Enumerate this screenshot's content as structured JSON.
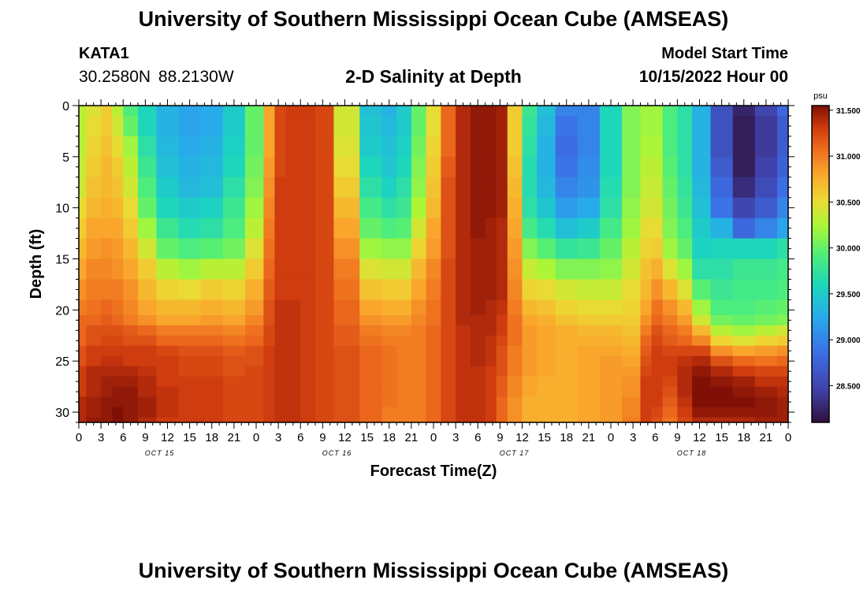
{
  "header": {
    "title": "University of Southern Mississippi Ocean Cube (AMSEAS)",
    "station": "KATA1",
    "coordinates": "30.2580N  88.2130W",
    "subtitle": "2-D Salinity at Depth",
    "model_start_label": "Model Start Time",
    "model_start_value": "10/15/2022 Hour 00"
  },
  "footer": {
    "title": "University of Southern Mississippi Ocean Cube (AMSEAS)"
  },
  "chart_data": {
    "type": "heatmap",
    "title": "2-D Salinity at Depth",
    "xlabel": "Forecast Time(Z)",
    "ylabel": "Depth (ft)",
    "x_hours_range": [
      0,
      96
    ],
    "x_tick_labels": [
      "0",
      "3",
      "6",
      "9",
      "12",
      "15",
      "18",
      "21",
      "0",
      "3",
      "6",
      "9",
      "12",
      "15",
      "18",
      "21",
      "0",
      "3",
      "6",
      "9",
      "12",
      "15",
      "18",
      "21",
      "0",
      "3",
      "6",
      "9",
      "12",
      "15",
      "18",
      "21",
      "0"
    ],
    "day_labels": [
      "OCT 15",
      "OCT 16",
      "OCT 17",
      "OCT 18"
    ],
    "y_range": [
      0,
      31
    ],
    "y_ticks": [
      0,
      5,
      10,
      15,
      20,
      25,
      30
    ],
    "colorbar": {
      "unit": "psu",
      "range": [
        28.1,
        31.55
      ],
      "tick_values": [
        31.5,
        31.0,
        30.5,
        30.0,
        29.5,
        29.0,
        28.5
      ],
      "tick_labels": [
        "31.500",
        "31.000",
        "30.500",
        "30.000",
        "29.500",
        "29.000",
        "28.500"
      ]
    },
    "depth_levels_ft": [
      0,
      2,
      4,
      6,
      8,
      10,
      12,
      14,
      16,
      18,
      20,
      21,
      22,
      23,
      24,
      25,
      26,
      27,
      28,
      29,
      30,
      31
    ],
    "time_hours": [
      0,
      2,
      4,
      5,
      7,
      9,
      12,
      15,
      18,
      21,
      24,
      26,
      27,
      29,
      31,
      33,
      36,
      40,
      42,
      44,
      46,
      48,
      50,
      52,
      54,
      56,
      57,
      59,
      61,
      63,
      66,
      69,
      72,
      75,
      77,
      78,
      80,
      82,
      84,
      87,
      90,
      93,
      96
    ],
    "salinity_columns": [
      [
        30.3,
        30.3,
        30.3,
        30.35,
        30.4,
        30.5,
        30.6,
        30.7,
        30.8,
        30.9,
        31.0,
        31.1,
        31.1,
        31.1,
        31.2,
        31.2,
        31.3,
        31.3,
        31.3,
        31.4,
        31.4,
        31.4
      ],
      [
        30.45,
        30.5,
        30.55,
        30.6,
        30.65,
        30.7,
        30.8,
        30.85,
        30.95,
        31.0,
        31.05,
        31.1,
        31.2,
        31.2,
        31.3,
        31.3,
        31.4,
        31.4,
        31.4,
        31.45,
        31.45,
        31.5
      ],
      [
        30.6,
        30.6,
        30.65,
        30.7,
        30.7,
        30.75,
        30.8,
        30.9,
        30.95,
        31.0,
        31.1,
        31.15,
        31.2,
        31.25,
        31.3,
        31.35,
        31.4,
        31.45,
        31.45,
        31.5,
        31.5,
        31.5
      ],
      [
        30.3,
        30.4,
        30.5,
        30.6,
        30.65,
        30.7,
        30.8,
        30.85,
        30.9,
        31.0,
        31.05,
        31.1,
        31.2,
        31.25,
        31.3,
        31.35,
        31.4,
        31.45,
        31.5,
        31.5,
        31.55,
        31.55
      ],
      [
        29.9,
        30.0,
        30.2,
        30.3,
        30.4,
        30.5,
        30.6,
        30.7,
        30.8,
        30.9,
        30.95,
        31.0,
        31.15,
        31.2,
        31.3,
        31.3,
        31.4,
        31.45,
        31.5,
        31.5,
        31.5,
        31.5
      ],
      [
        29.6,
        29.6,
        29.7,
        29.8,
        29.9,
        30.0,
        30.2,
        30.4,
        30.6,
        30.7,
        30.8,
        30.9,
        31.1,
        31.2,
        31.3,
        31.3,
        31.35,
        31.4,
        31.4,
        31.45,
        31.45,
        31.4
      ],
      [
        29.3,
        29.3,
        29.35,
        29.4,
        29.5,
        29.6,
        29.8,
        30.0,
        30.3,
        30.55,
        30.7,
        30.8,
        31.0,
        31.1,
        31.25,
        31.3,
        31.3,
        31.3,
        31.35,
        31.35,
        31.35,
        31.3
      ],
      [
        29.2,
        29.2,
        29.25,
        29.3,
        29.35,
        29.5,
        29.65,
        29.9,
        30.2,
        30.5,
        30.7,
        30.8,
        31.0,
        31.1,
        31.2,
        31.25,
        31.25,
        31.3,
        31.3,
        31.3,
        31.3,
        31.3
      ],
      [
        29.25,
        29.25,
        29.3,
        29.35,
        29.4,
        29.55,
        29.7,
        29.95,
        30.3,
        30.6,
        30.75,
        30.85,
        31.0,
        31.1,
        31.2,
        31.25,
        31.25,
        31.3,
        31.3,
        31.3,
        31.3,
        31.3
      ],
      [
        29.5,
        29.5,
        29.55,
        29.6,
        29.7,
        29.8,
        29.9,
        30.05,
        30.3,
        30.55,
        30.7,
        30.8,
        30.95,
        31.05,
        31.15,
        31.2,
        31.2,
        31.25,
        31.25,
        31.25,
        31.25,
        31.25
      ],
      [
        30.0,
        30.0,
        30.0,
        30.05,
        30.1,
        30.2,
        30.3,
        30.45,
        30.6,
        30.75,
        30.85,
        30.95,
        31.05,
        31.1,
        31.2,
        31.2,
        31.25,
        31.25,
        31.25,
        31.25,
        31.25,
        31.25
      ],
      [
        30.8,
        30.8,
        30.8,
        30.85,
        30.9,
        30.95,
        31.0,
        31.05,
        31.1,
        31.15,
        31.2,
        31.2,
        31.25,
        31.25,
        31.3,
        31.3,
        31.3,
        31.3,
        31.3,
        31.3,
        31.3,
        31.3
      ],
      [
        31.25,
        31.25,
        31.25,
        31.25,
        31.3,
        31.3,
        31.3,
        31.3,
        31.3,
        31.3,
        31.35,
        31.35,
        31.35,
        31.35,
        31.35,
        31.35,
        31.35,
        31.35,
        31.35,
        31.35,
        31.35,
        31.35
      ],
      [
        31.3,
        31.3,
        31.3,
        31.3,
        31.3,
        31.3,
        31.3,
        31.3,
        31.3,
        31.3,
        31.35,
        31.35,
        31.35,
        31.35,
        31.35,
        31.35,
        31.35,
        31.35,
        31.35,
        31.35,
        31.35,
        31.35
      ],
      [
        31.3,
        31.3,
        31.3,
        31.3,
        31.3,
        31.3,
        31.3,
        31.3,
        31.3,
        31.3,
        31.3,
        31.3,
        31.3,
        31.3,
        31.3,
        31.3,
        31.3,
        31.3,
        31.3,
        31.3,
        31.3,
        31.3
      ],
      [
        31.25,
        31.25,
        31.25,
        31.25,
        31.25,
        31.25,
        31.25,
        31.25,
        31.25,
        31.25,
        31.25,
        31.25,
        31.25,
        31.25,
        31.25,
        31.25,
        31.25,
        31.25,
        31.25,
        31.25,
        31.25,
        31.25
      ],
      [
        30.4,
        30.4,
        30.45,
        30.5,
        30.6,
        30.7,
        30.8,
        30.9,
        31.0,
        31.05,
        31.1,
        31.1,
        31.15,
        31.15,
        31.2,
        31.2,
        31.2,
        31.2,
        31.2,
        31.2,
        31.2,
        31.2
      ],
      [
        29.4,
        29.45,
        29.5,
        29.6,
        29.7,
        29.85,
        30.0,
        30.2,
        30.45,
        30.65,
        30.8,
        30.9,
        31.0,
        31.05,
        31.1,
        31.1,
        31.1,
        31.1,
        31.1,
        31.1,
        31.1,
        31.1
      ],
      [
        29.3,
        29.35,
        29.4,
        29.45,
        29.55,
        29.7,
        29.9,
        30.15,
        30.4,
        30.6,
        30.75,
        30.85,
        30.95,
        31.0,
        31.05,
        31.05,
        31.05,
        31.05,
        31.05,
        31.05,
        31.0,
        31.0
      ],
      [
        29.5,
        29.5,
        29.55,
        29.6,
        29.7,
        29.8,
        29.95,
        30.15,
        30.4,
        30.6,
        30.75,
        30.85,
        30.95,
        31.0,
        31.0,
        31.0,
        31.0,
        31.0,
        31.0,
        31.0,
        31.0,
        31.0
      ],
      [
        30.0,
        30.0,
        30.05,
        30.1,
        30.15,
        30.25,
        30.4,
        30.55,
        30.7,
        30.8,
        30.9,
        30.95,
        31.0,
        31.0,
        31.0,
        31.0,
        31.0,
        31.0,
        31.0,
        31.0,
        31.0,
        31.0
      ],
      [
        30.5,
        30.5,
        30.55,
        30.6,
        30.65,
        30.7,
        30.8,
        30.85,
        30.95,
        31.0,
        31.05,
        31.05,
        31.1,
        31.1,
        31.1,
        31.1,
        31.1,
        31.1,
        31.1,
        31.1,
        31.1,
        31.1
      ],
      [
        31.1,
        31.1,
        31.1,
        31.15,
        31.2,
        31.2,
        31.2,
        31.2,
        31.25,
        31.25,
        31.25,
        31.25,
        31.25,
        31.25,
        31.25,
        31.25,
        31.25,
        31.25,
        31.25,
        31.25,
        31.25,
        31.25
      ],
      [
        31.4,
        31.4,
        31.4,
        31.4,
        31.4,
        31.4,
        31.4,
        31.4,
        31.4,
        31.4,
        31.4,
        31.4,
        31.35,
        31.35,
        31.35,
        31.35,
        31.35,
        31.35,
        31.35,
        31.35,
        31.35,
        31.35
      ],
      [
        31.5,
        31.5,
        31.5,
        31.5,
        31.5,
        31.5,
        31.5,
        31.45,
        31.45,
        31.45,
        31.45,
        31.4,
        31.4,
        31.4,
        31.4,
        31.4,
        31.35,
        31.35,
        31.35,
        31.35,
        31.35,
        31.35
      ],
      [
        31.5,
        31.5,
        31.5,
        31.5,
        31.5,
        31.5,
        31.45,
        31.45,
        31.45,
        31.45,
        31.4,
        31.4,
        31.4,
        31.35,
        31.35,
        31.35,
        31.3,
        31.3,
        31.3,
        31.3,
        31.3,
        31.3
      ],
      [
        31.45,
        31.45,
        31.45,
        31.45,
        31.45,
        31.45,
        31.4,
        31.4,
        31.4,
        31.4,
        31.35,
        31.3,
        31.3,
        31.25,
        31.2,
        31.2,
        31.2,
        31.15,
        31.15,
        31.1,
        31.1,
        31.1
      ],
      [
        30.6,
        30.6,
        30.6,
        30.65,
        30.7,
        30.75,
        30.8,
        30.85,
        30.9,
        30.95,
        31.0,
        31.05,
        31.05,
        31.05,
        31.0,
        31.0,
        31.0,
        30.95,
        30.95,
        30.9,
        30.9,
        30.9
      ],
      [
        29.8,
        29.75,
        29.7,
        29.65,
        29.65,
        29.7,
        29.85,
        30.1,
        30.35,
        30.55,
        30.7,
        30.8,
        30.85,
        30.85,
        30.85,
        30.85,
        30.85,
        30.8,
        30.8,
        30.75,
        30.75,
        30.75
      ],
      [
        29.4,
        29.35,
        29.3,
        29.3,
        29.35,
        29.45,
        29.65,
        29.95,
        30.25,
        30.5,
        30.65,
        30.75,
        30.8,
        30.8,
        30.8,
        30.8,
        30.8,
        30.75,
        30.75,
        30.75,
        30.75,
        30.75
      ],
      [
        29.0,
        28.9,
        28.85,
        28.9,
        29.0,
        29.15,
        29.4,
        29.75,
        30.1,
        30.4,
        30.55,
        30.65,
        30.75,
        30.75,
        30.75,
        30.75,
        30.75,
        30.75,
        30.75,
        30.75,
        30.75,
        30.75
      ],
      [
        29.0,
        29.0,
        29.0,
        29.05,
        29.1,
        29.25,
        29.5,
        29.8,
        30.1,
        30.35,
        30.5,
        30.6,
        30.7,
        30.75,
        30.8,
        30.8,
        30.8,
        30.8,
        30.8,
        30.8,
        30.8,
        30.8
      ],
      [
        29.6,
        29.6,
        29.6,
        29.6,
        29.65,
        29.7,
        29.85,
        30.0,
        30.15,
        30.35,
        30.5,
        30.6,
        30.7,
        30.75,
        30.8,
        30.85,
        30.85,
        30.85,
        30.85,
        30.85,
        30.85,
        30.85
      ],
      [
        30.1,
        30.1,
        30.1,
        30.1,
        30.1,
        30.15,
        30.2,
        30.3,
        30.4,
        30.5,
        30.55,
        30.6,
        30.65,
        30.7,
        30.75,
        30.8,
        30.85,
        30.9,
        30.9,
        30.95,
        30.95,
        31.0
      ],
      [
        30.2,
        30.2,
        30.25,
        30.3,
        30.35,
        30.4,
        30.5,
        30.55,
        30.65,
        30.7,
        30.8,
        30.9,
        31.0,
        31.1,
        31.15,
        31.2,
        31.25,
        31.3,
        31.3,
        31.3,
        31.3,
        31.3
      ],
      [
        30.2,
        30.2,
        30.25,
        30.3,
        30.35,
        30.4,
        30.5,
        30.6,
        30.75,
        30.9,
        31.05,
        31.1,
        31.2,
        31.25,
        31.3,
        31.3,
        31.3,
        31.3,
        31.3,
        31.3,
        31.25,
        31.2
      ],
      [
        29.9,
        29.9,
        29.9,
        29.95,
        30.0,
        30.05,
        30.1,
        30.2,
        30.45,
        30.7,
        30.9,
        31.0,
        31.1,
        31.15,
        31.25,
        31.3,
        31.3,
        31.25,
        31.2,
        31.15,
        31.1,
        31.05
      ],
      [
        29.7,
        29.7,
        29.7,
        29.7,
        29.75,
        29.8,
        29.9,
        30.0,
        30.2,
        30.45,
        30.7,
        30.85,
        31.0,
        31.1,
        31.25,
        31.35,
        31.4,
        31.4,
        31.4,
        31.35,
        31.3,
        31.25
      ],
      [
        29.3,
        29.3,
        29.3,
        29.3,
        29.35,
        29.4,
        29.5,
        29.55,
        29.7,
        29.95,
        30.2,
        30.4,
        30.7,
        30.95,
        31.25,
        31.4,
        31.5,
        31.55,
        31.55,
        31.55,
        31.5,
        31.4
      ],
      [
        28.6,
        28.6,
        28.6,
        28.7,
        28.8,
        28.9,
        29.3,
        29.6,
        29.7,
        29.8,
        29.9,
        30.05,
        30.3,
        30.55,
        30.9,
        31.2,
        31.4,
        31.5,
        31.55,
        31.55,
        31.5,
        31.4
      ],
      [
        28.25,
        28.2,
        28.2,
        28.2,
        28.3,
        28.5,
        28.8,
        29.6,
        29.8,
        29.85,
        29.9,
        30.0,
        30.2,
        30.45,
        30.8,
        31.1,
        31.3,
        31.45,
        31.5,
        31.55,
        31.5,
        31.4
      ],
      [
        28.5,
        28.4,
        28.4,
        28.45,
        28.55,
        28.7,
        29.0,
        29.6,
        29.8,
        29.85,
        29.95,
        30.05,
        30.3,
        30.55,
        30.85,
        31.05,
        31.25,
        31.35,
        31.45,
        31.5,
        31.5,
        31.45
      ],
      [
        28.8,
        28.7,
        28.7,
        28.75,
        28.85,
        29.0,
        29.2,
        29.7,
        29.85,
        29.9,
        30.0,
        30.1,
        30.4,
        30.6,
        30.9,
        31.1,
        31.25,
        31.35,
        31.4,
        31.45,
        31.45,
        31.45
      ]
    ]
  }
}
